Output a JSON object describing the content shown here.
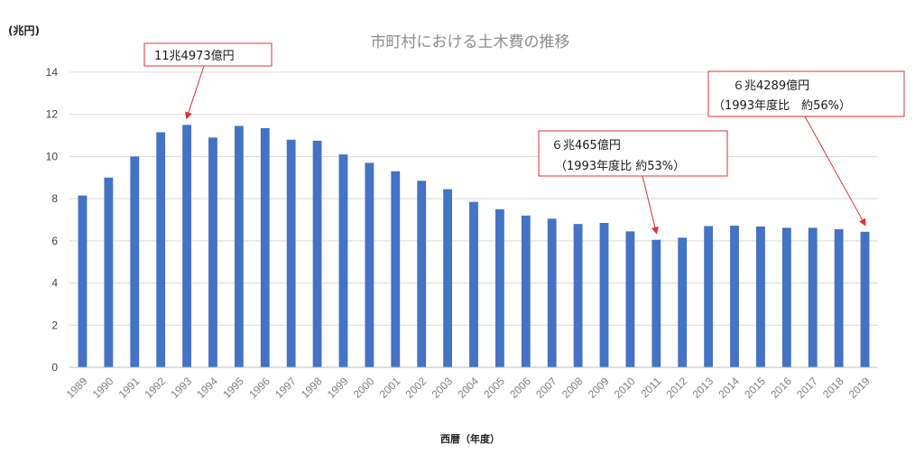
{
  "chart_data": {
    "type": "bar",
    "title": "市町村における土木費の推移",
    "unit_label": "(兆円)",
    "xlabel": "西暦（年度）",
    "ylabel": "",
    "ylim": [
      0,
      14
    ],
    "yticks": [
      0,
      2,
      4,
      6,
      8,
      10,
      12,
      14
    ],
    "grid": true,
    "colors": {
      "bar": "#4472c4",
      "callout": "#e03030"
    },
    "categories": [
      "1989",
      "1990",
      "1991",
      "1992",
      "1993",
      "1994",
      "1995",
      "1996",
      "1997",
      "1998",
      "1999",
      "2000",
      "2001",
      "2002",
      "2003",
      "2004",
      "2005",
      "2006",
      "2007",
      "2008",
      "2009",
      "2010",
      "2011",
      "2012",
      "2013",
      "2014",
      "2015",
      "2016",
      "2017",
      "2018",
      "2019"
    ],
    "series": [
      {
        "values": [
          8.15,
          9.0,
          10.0,
          11.15,
          11.5,
          10.9,
          11.45,
          11.35,
          10.8,
          10.75,
          10.1,
          9.7,
          9.3,
          8.85,
          8.45,
          7.85,
          7.5,
          7.2,
          7.05,
          6.8,
          6.85,
          6.45,
          6.05,
          6.15,
          6.7,
          6.72,
          6.68,
          6.62,
          6.62,
          6.55,
          6.43
        ]
      }
    ],
    "annotations": [
      {
        "lines": [
          "11兆4973億円"
        ],
        "target_category": "1993"
      },
      {
        "lines": [
          "６兆465億円",
          "（1993年度比 約53%）"
        ],
        "target_category": "2011"
      },
      {
        "lines": [
          "６兆4289億円",
          "（1993年度比　約56%）"
        ],
        "target_category": "2019"
      }
    ]
  }
}
